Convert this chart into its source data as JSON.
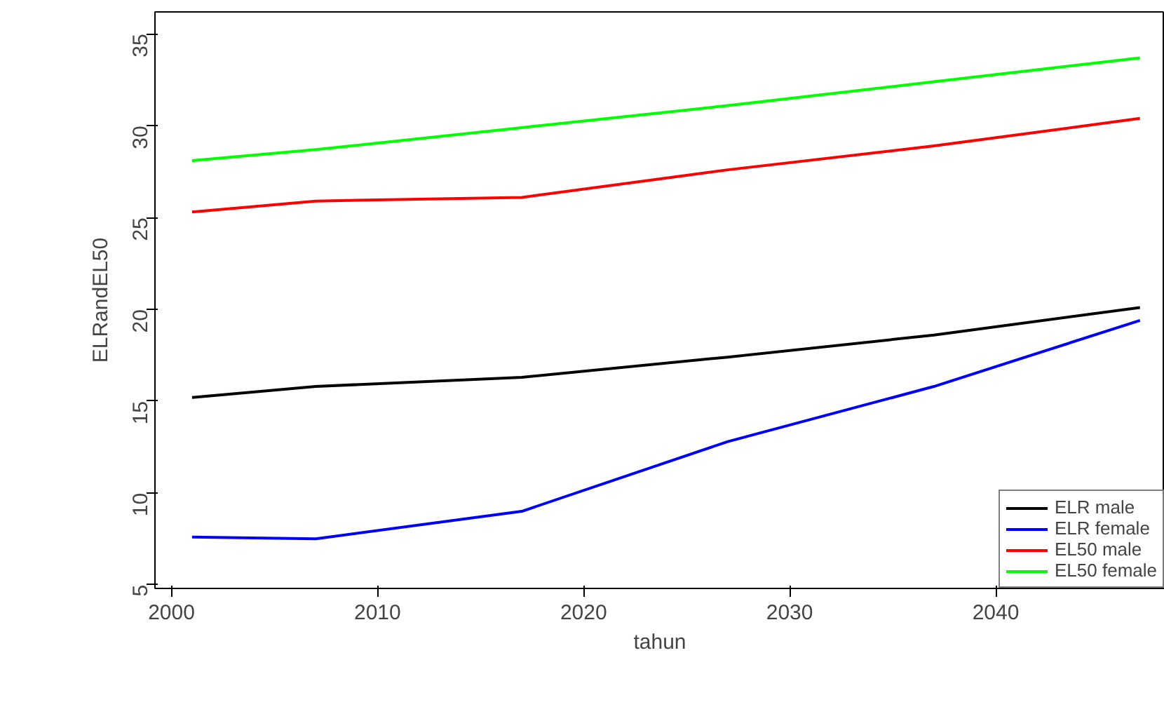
{
  "chart_data": {
    "type": "line",
    "xlabel": "tahun",
    "ylabel": "ELRandEL50",
    "x": [
      2001,
      2007,
      2017,
      2027,
      2037,
      2047
    ],
    "series": [
      {
        "name": "ELR male",
        "color": "#000000",
        "values": [
          15.2,
          15.8,
          16.3,
          17.4,
          18.6,
          20.1
        ]
      },
      {
        "name": "ELR female",
        "color": "#0000ff",
        "values": [
          7.6,
          7.5,
          9.0,
          12.8,
          15.8,
          19.4
        ]
      },
      {
        "name": "EL50 male",
        "color": "#ff0000",
        "values": [
          25.3,
          25.9,
          26.1,
          27.6,
          28.9,
          30.4
        ]
      },
      {
        "name": "EL50 female",
        "color": "#00ff00",
        "values": [
          28.1,
          28.7,
          29.9,
          31.1,
          32.4,
          33.7
        ]
      }
    ],
    "xlim": [
      1999.2,
      2048.2
    ],
    "ylim": [
      4.8,
      36.2
    ],
    "xticks": [
      2000,
      2010,
      2020,
      2030,
      2040
    ],
    "yticks": [
      5,
      10,
      15,
      20,
      25,
      30,
      35
    ],
    "grid": false,
    "legend": "bottom right",
    "marker": "none",
    "line_style": "solid"
  }
}
